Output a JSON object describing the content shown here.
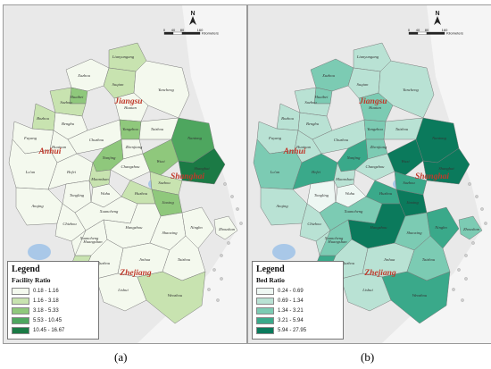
{
  "panels": [
    {
      "id": "a",
      "caption": "(a)",
      "legend": {
        "title": "Legend",
        "subtitle": "Facility Ratio",
        "classes": [
          {
            "label": "0.18 - 1.16",
            "color": "#f4f9ee"
          },
          {
            "label": "1.16 - 3.18",
            "color": "#c8e3b0"
          },
          {
            "label": "3.18 - 5.33",
            "color": "#8fc87c"
          },
          {
            "label": "5.53 - 10.45",
            "color": "#4ea65f"
          },
          {
            "label": "10.45 - 16.67",
            "color": "#1b7a45"
          }
        ]
      },
      "scale_labels": [
        "0",
        "40",
        "80",
        "160"
      ],
      "scale_unit": "Kilometers",
      "north": "N",
      "province_labels": [
        "Jiangsu",
        "Anhui",
        "Zhejiang",
        "Shanghai"
      ],
      "city_classes": [
        0,
        1,
        1,
        2,
        1,
        1,
        0,
        0,
        0,
        0,
        0,
        0,
        2,
        0,
        0,
        0,
        2,
        0,
        1,
        0,
        0,
        0,
        2,
        1,
        3,
        4,
        0,
        0,
        0,
        0,
        1,
        2,
        0,
        0,
        0,
        0,
        0,
        0,
        0,
        0,
        1,
        1,
        0
      ]
    },
    {
      "id": "b",
      "caption": "(b)",
      "legend": {
        "title": "Legend",
        "subtitle": "Bed Ratio",
        "classes": [
          {
            "label": "0.24 - 0.69",
            "color": "#eef7f3"
          },
          {
            "label": "0.69 - 1.34",
            "color": "#b9e2d4"
          },
          {
            "label": "1.34 - 3.21",
            "color": "#7ccbb3"
          },
          {
            "label": "3.21 - 5.94",
            "color": "#3aa98a"
          },
          {
            "label": "5.94 - 27.95",
            "color": "#0b7a5c"
          }
        ]
      },
      "scale_labels": [
        "0",
        "40",
        "80",
        "160"
      ],
      "scale_unit": "Kilometers",
      "north": "N",
      "province_labels": [
        "Jiangsu",
        "Anhui",
        "Zhejiang",
        "Shanghai"
      ],
      "city_classes": [
        2,
        1,
        1,
        2,
        1,
        1,
        1,
        1,
        2,
        1,
        1,
        1,
        2,
        1,
        2,
        3,
        3,
        2,
        1,
        1,
        0,
        0,
        4,
        3,
        4,
        4,
        1,
        1,
        2,
        1,
        3,
        4,
        4,
        2,
        3,
        2,
        1,
        1,
        2,
        1,
        3,
        3,
        2
      ]
    }
  ],
  "cities": [
    "Xuzhou",
    "Lianyungang",
    "Suqian",
    "Huaibei",
    "Suzhou",
    "Bozhou",
    "Fuyang",
    "Bengbu",
    "Huaian",
    "Yancheng",
    "Huainan",
    "Chuzhou",
    "Yangzhou",
    "Taizhou",
    "Lu'an",
    "Hefei",
    "Nanjing",
    "Zhenjiang",
    "Maanshan",
    "Changzhou",
    "Wuhu",
    "Tongling",
    "Wuxi",
    "Suzhou",
    "Nantong",
    "Shanghai",
    "Anqing",
    "Chizhou",
    "Xuancheng",
    "Huangshan",
    "Huzhou",
    "Jiaxing",
    "Hangzhou",
    "Shaoxing",
    "Ningbo",
    "Zhoushan",
    "Quzhou",
    "Jinhua",
    "Taizhou",
    "Lishui",
    "Wenzhou",
    "Linan",
    "Xuancheng"
  ]
}
